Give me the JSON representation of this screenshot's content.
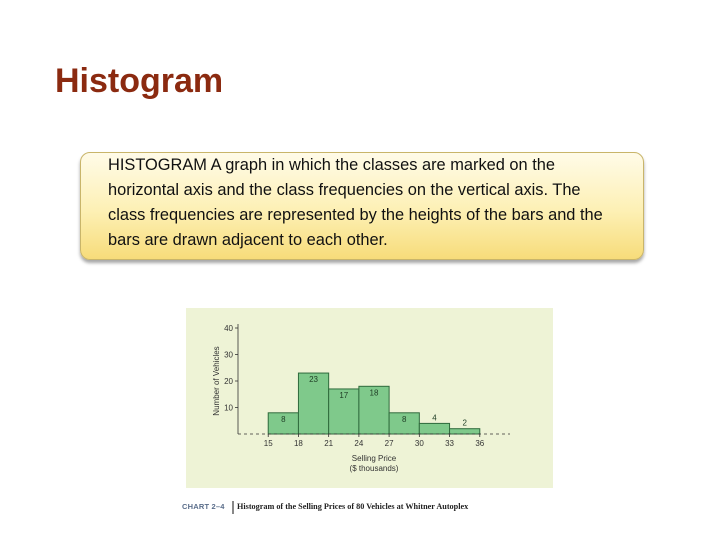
{
  "slide": {
    "title": "Histogram",
    "definition_lines": [
      "HISTOGRAM  A graph in which the classes are marked on the",
      "horizontal axis and the class frequencies on the vertical axis. The",
      "class frequencies are represented by the heights of the bars and the",
      "bars are drawn adjacent to each other."
    ]
  },
  "caption": {
    "label": "CHART 2–4",
    "text": "Histogram of the Selling Prices of 80 Vehicles at Whitner Autoplex"
  },
  "chart_data": {
    "type": "bar",
    "bins": [
      [
        15,
        18
      ],
      [
        18,
        21
      ],
      [
        21,
        24
      ],
      [
        24,
        27
      ],
      [
        27,
        30
      ],
      [
        30,
        33
      ],
      [
        33,
        36
      ]
    ],
    "values": [
      8,
      23,
      17,
      18,
      8,
      4,
      2
    ],
    "data_labels": [
      "8",
      "23",
      "17",
      "18",
      "8",
      "4",
      "2"
    ],
    "x_ticks": [
      "15",
      "18",
      "21",
      "24",
      "27",
      "30",
      "33",
      "36"
    ],
    "y_ticks": [
      "10",
      "20",
      "30",
      "40"
    ],
    "xlabel": "Selling Price",
    "xlabel_units": "($ thousands)",
    "ylabel": "Number of Vehicles",
    "ylim": [
      0,
      40
    ],
    "xlim": [
      12,
      39
    ],
    "bar_color": "#7fc98b",
    "bar_edge_color": "#2f6a3c",
    "grid": false
  }
}
